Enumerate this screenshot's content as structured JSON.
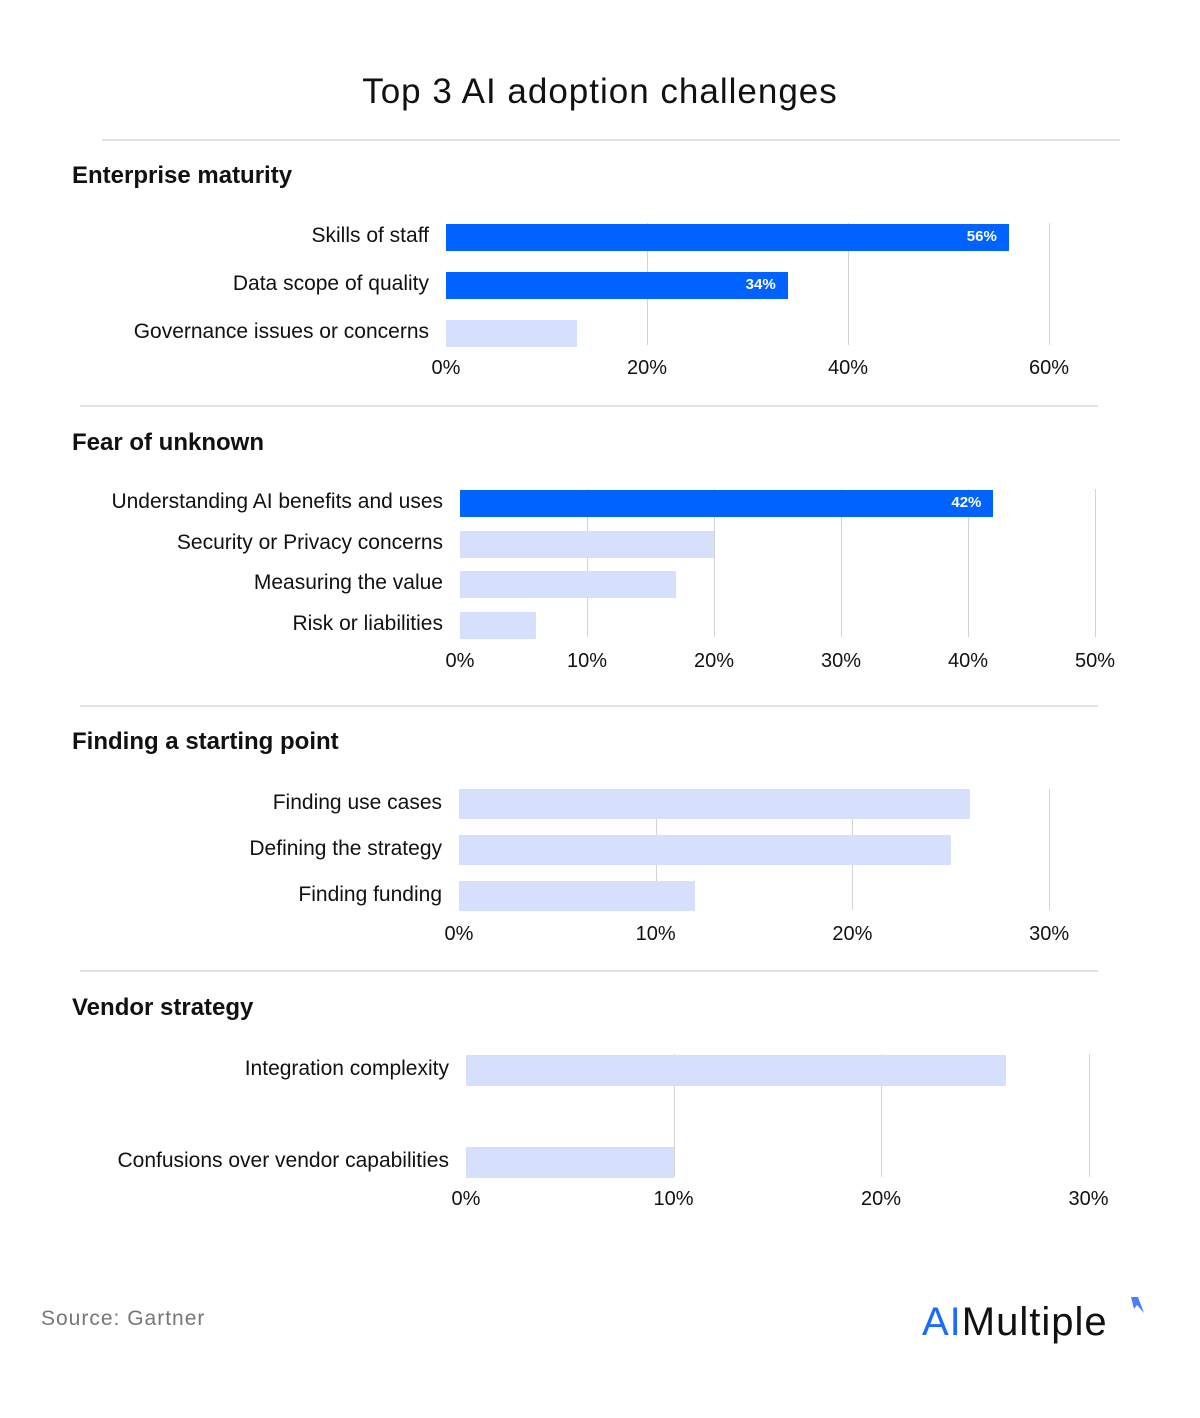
{
  "title": "Top 3 AI adoption challenges",
  "source": "Source: Gartner",
  "logo": {
    "part1": "AI",
    "part2": "Multiple"
  },
  "colors": {
    "highlight": "#0062ff",
    "normal": "#d6e0fc",
    "logo_blue": "#1a6bff"
  },
  "chart_data": [
    {
      "type": "bar",
      "orientation": "horizontal",
      "title": "Enterprise maturity",
      "categories": [
        "Skills of staff",
        "Data scope of quality",
        "Governance issues or concerns"
      ],
      "values": [
        56,
        34,
        13
      ],
      "highlight": [
        true,
        true,
        false
      ],
      "data_labels": [
        "56%",
        "34%",
        ""
      ],
      "xlim": [
        0,
        60
      ],
      "ticks": [
        "0%",
        "20%",
        "40%",
        "60%"
      ],
      "tick_values": [
        0,
        20,
        40,
        60
      ],
      "grid": true
    },
    {
      "type": "bar",
      "orientation": "horizontal",
      "title": "Fear of unknown",
      "categories": [
        "Understanding AI benefits and uses",
        "Security or Privacy concerns",
        "Measuring the value",
        "Risk or liabilities"
      ],
      "values": [
        42,
        20,
        17,
        6
      ],
      "highlight": [
        true,
        false,
        false,
        false
      ],
      "data_labels": [
        "42%",
        "",
        "",
        ""
      ],
      "xlim": [
        0,
        50
      ],
      "ticks": [
        "0%",
        "10%",
        "20%",
        "30%",
        "40%",
        "50%"
      ],
      "tick_values": [
        0,
        10,
        20,
        30,
        40,
        50
      ],
      "grid": true
    },
    {
      "type": "bar",
      "orientation": "horizontal",
      "title": "Finding a starting point",
      "categories": [
        "Finding use cases",
        "Defining the strategy",
        "Finding funding"
      ],
      "values": [
        26,
        25,
        12
      ],
      "highlight": [
        false,
        false,
        false
      ],
      "data_labels": [
        "",
        "",
        ""
      ],
      "xlim": [
        0,
        30
      ],
      "ticks": [
        "0%",
        "10%",
        "20%",
        "30%"
      ],
      "tick_values": [
        0,
        10,
        20,
        30
      ],
      "grid": true
    },
    {
      "type": "bar",
      "orientation": "horizontal",
      "title": "Vendor strategy",
      "categories": [
        "Integration complexity",
        "Confusions over vendor capabilities"
      ],
      "values": [
        26,
        10
      ],
      "highlight": [
        false,
        false
      ],
      "data_labels": [
        "",
        ""
      ],
      "xlim": [
        0,
        30
      ],
      "ticks": [
        "0%",
        "10%",
        "20%",
        "30%"
      ],
      "tick_values": [
        0,
        10,
        20,
        30
      ],
      "grid": true
    }
  ]
}
